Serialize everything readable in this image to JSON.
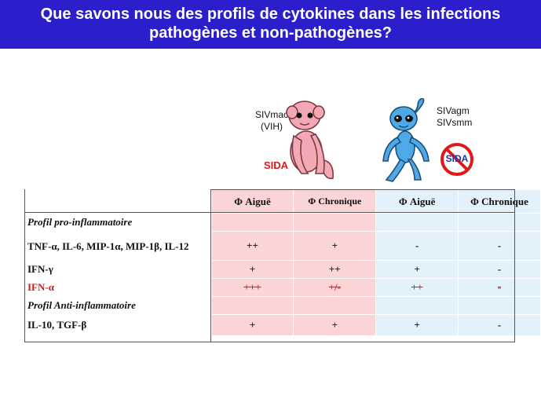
{
  "title": {
    "line1": "Que savons nous des profils de cytokines dans les infections",
    "line2": "pathogènes et non-pathogènes?"
  },
  "monkeys": {
    "left": {
      "label1": "SIVmac",
      "label2": "(VIH)",
      "badge": "SIDA",
      "icon": "pink-monkey-icon",
      "color": "#f4a8b4"
    },
    "right": {
      "label1": "SIVagm",
      "label2": "SIVsmm",
      "badge": "SIDA",
      "icon": "blue-monkey-icon",
      "color": "#4fa9e6"
    }
  },
  "table": {
    "headers": [
      "Φ Aiguë",
      "Φ Chronique",
      "Φ Aiguë",
      "Φ Chronique"
    ],
    "rows": [
      {
        "label": "Profil pro-inflammatoire",
        "section": true,
        "values": [
          "",
          "",
          "",
          ""
        ]
      },
      {
        "label": "TNF-α, IL-6, MIP-1α, MIP-1β, IL-12",
        "values": [
          "++",
          "+",
          "-",
          "-"
        ]
      },
      {
        "label": "IFN-γ",
        "values": [
          "+",
          "++",
          "+",
          "-"
        ]
      },
      {
        "label": "IFN-α",
        "highlight": true,
        "values": [
          "+++",
          "+/-",
          "++",
          "-"
        ]
      },
      {
        "label": "Profil Anti-inflammatoire",
        "section": true,
        "values": [
          "",
          "",
          "",
          ""
        ]
      },
      {
        "label": "IL-10, TGF-β",
        "values": [
          "+",
          "+",
          "+",
          "-"
        ]
      }
    ]
  },
  "colors": {
    "title_bg": "#2b1ecb",
    "pink": "#fbd5d5",
    "blue": "#e3f1fb",
    "red": "#e01818"
  }
}
